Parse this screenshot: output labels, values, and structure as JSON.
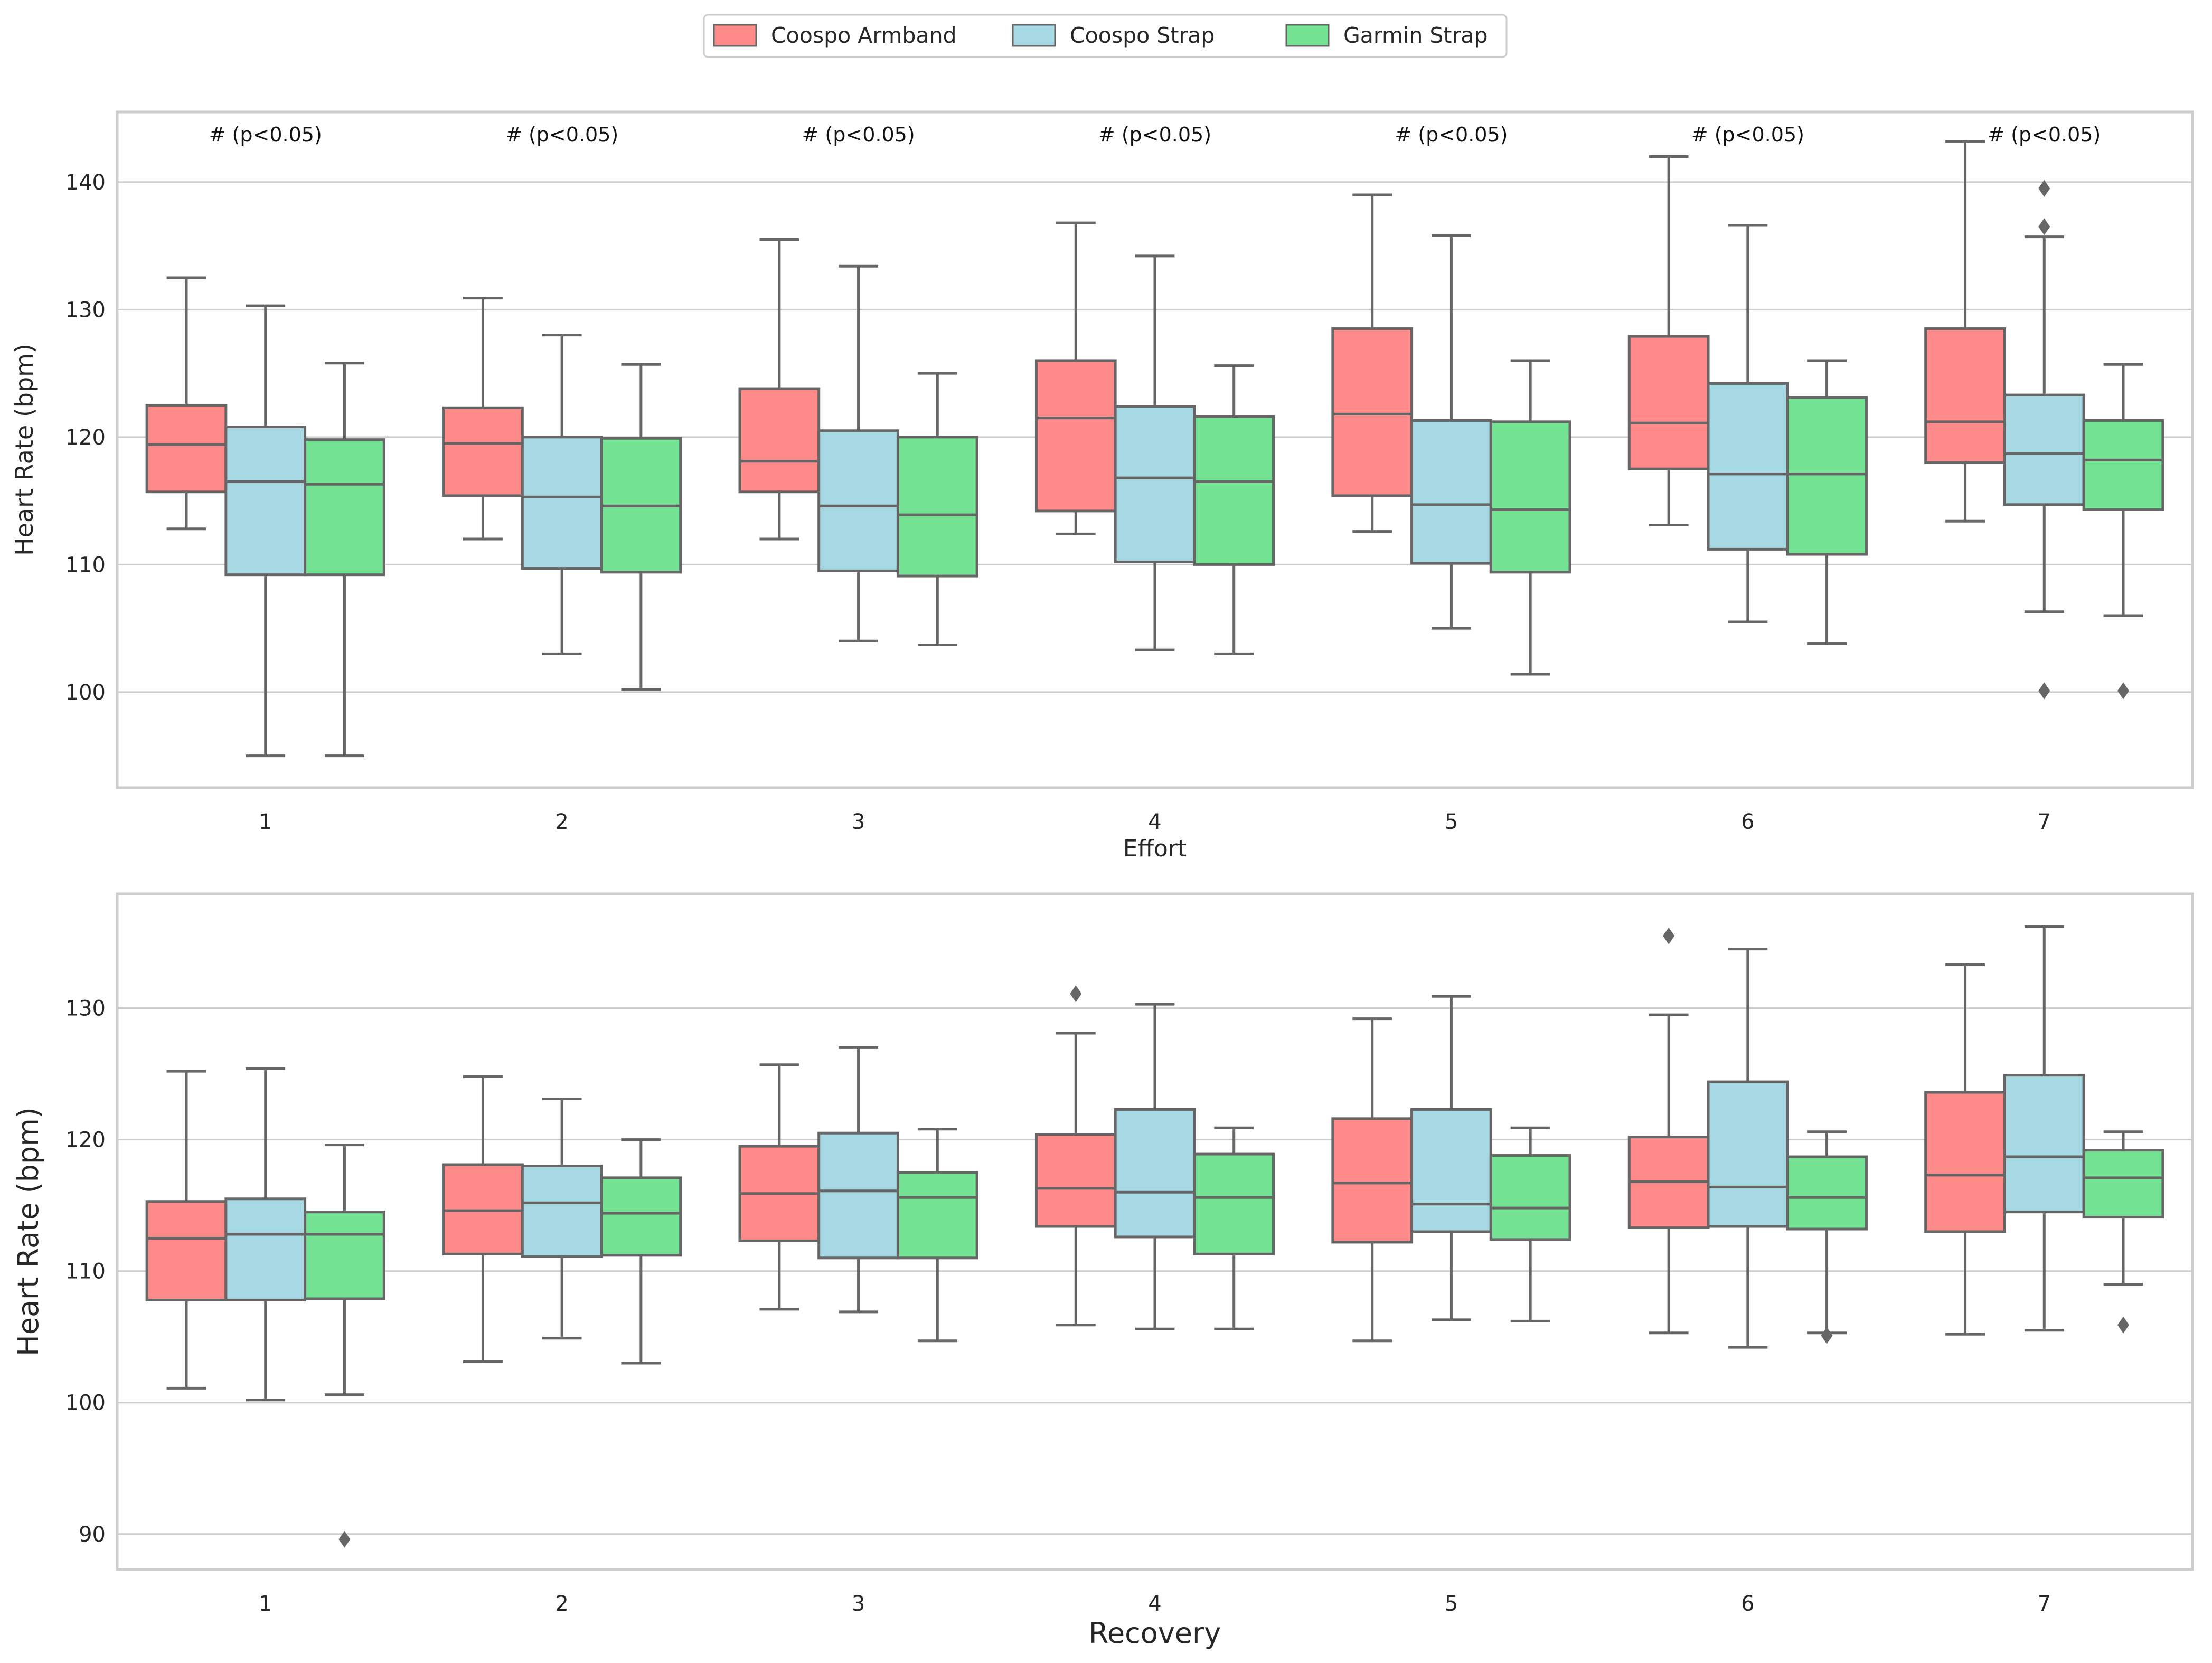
{
  "legend": {
    "entries": [
      {
        "name": "Coospo Armband",
        "color": "#ff8a8a"
      },
      {
        "name": "Coospo Strap",
        "color": "#a6d9e4"
      },
      {
        "name": "Garmin Strap",
        "color": "#74e394"
      }
    ]
  },
  "chart_data": [
    {
      "type": "box",
      "xlabel": "Effort",
      "ylabel": "Heart Rate (bpm)",
      "ylim": [
        92.5,
        145.5
      ],
      "yticks": [
        100,
        110,
        120,
        130,
        140
      ],
      "categories": [
        "1",
        "2",
        "3",
        "4",
        "5",
        "6",
        "7"
      ],
      "annotations": [
        "# (p<0.05)",
        "# (p<0.05)",
        "# (p<0.05)",
        "# (p<0.05)",
        "# (p<0.05)",
        "# (p<0.05)",
        "# (p<0.05)"
      ],
      "series": [
        {
          "name": "Coospo Armband",
          "boxes": [
            {
              "whislo": 112.8,
              "q1": 115.7,
              "med": 119.4,
              "q3": 122.5,
              "whishi": 132.5,
              "fliers": []
            },
            {
              "whislo": 112.0,
              "q1": 115.4,
              "med": 119.5,
              "q3": 122.3,
              "whishi": 130.9,
              "fliers": []
            },
            {
              "whislo": 112.0,
              "q1": 115.7,
              "med": 118.1,
              "q3": 123.8,
              "whishi": 135.5,
              "fliers": []
            },
            {
              "whislo": 112.4,
              "q1": 114.2,
              "med": 121.5,
              "q3": 126.0,
              "whishi": 136.8,
              "fliers": []
            },
            {
              "whislo": 112.6,
              "q1": 115.4,
              "med": 121.8,
              "q3": 128.5,
              "whishi": 139.0,
              "fliers": []
            },
            {
              "whislo": 113.1,
              "q1": 117.5,
              "med": 121.1,
              "q3": 127.9,
              "whishi": 142.0,
              "fliers": []
            },
            {
              "whislo": 113.4,
              "q1": 118.0,
              "med": 121.2,
              "q3": 128.5,
              "whishi": 143.2,
              "fliers": []
            }
          ]
        },
        {
          "name": "Coospo Strap",
          "boxes": [
            {
              "whislo": 95.0,
              "q1": 109.2,
              "med": 116.5,
              "q3": 120.8,
              "whishi": 130.3,
              "fliers": []
            },
            {
              "whislo": 103.0,
              "q1": 109.7,
              "med": 115.3,
              "q3": 120.0,
              "whishi": 128.0,
              "fliers": []
            },
            {
              "whislo": 104.0,
              "q1": 109.5,
              "med": 114.6,
              "q3": 120.5,
              "whishi": 133.4,
              "fliers": []
            },
            {
              "whislo": 103.3,
              "q1": 110.2,
              "med": 116.8,
              "q3": 122.4,
              "whishi": 134.2,
              "fliers": []
            },
            {
              "whislo": 105.0,
              "q1": 110.1,
              "med": 114.7,
              "q3": 121.3,
              "whishi": 135.8,
              "fliers": []
            },
            {
              "whislo": 105.5,
              "q1": 111.2,
              "med": 117.1,
              "q3": 124.2,
              "whishi": 136.6,
              "fliers": []
            },
            {
              "whislo": 106.3,
              "q1": 114.7,
              "med": 118.7,
              "q3": 123.3,
              "whishi": 135.7,
              "fliers": [
                136.5,
                139.5,
                100.1
              ]
            }
          ]
        },
        {
          "name": "Garmin Strap",
          "boxes": [
            {
              "whislo": 95.0,
              "q1": 109.2,
              "med": 116.3,
              "q3": 119.8,
              "whishi": 125.8,
              "fliers": []
            },
            {
              "whislo": 100.2,
              "q1": 109.4,
              "med": 114.6,
              "q3": 119.9,
              "whishi": 125.7,
              "fliers": []
            },
            {
              "whislo": 103.7,
              "q1": 109.1,
              "med": 113.9,
              "q3": 120.0,
              "whishi": 125.0,
              "fliers": []
            },
            {
              "whislo": 103.0,
              "q1": 110.0,
              "med": 116.5,
              "q3": 121.6,
              "whishi": 125.6,
              "fliers": []
            },
            {
              "whislo": 101.4,
              "q1": 109.4,
              "med": 114.3,
              "q3": 121.2,
              "whishi": 126.0,
              "fliers": []
            },
            {
              "whislo": 103.8,
              "q1": 110.8,
              "med": 117.1,
              "q3": 123.1,
              "whishi": 126.0,
              "fliers": []
            },
            {
              "whislo": 106.0,
              "q1": 114.3,
              "med": 118.2,
              "q3": 121.3,
              "whishi": 125.7,
              "fliers": [
                100.1
              ]
            }
          ]
        }
      ]
    },
    {
      "type": "box",
      "xlabel": "Recovery",
      "ylabel": "Heart Rate (bpm)",
      "ylim": [
        87.3,
        138.7
      ],
      "yticks": [
        90,
        100,
        110,
        120,
        130
      ],
      "categories": [
        "1",
        "2",
        "3",
        "4",
        "5",
        "6",
        "7"
      ],
      "series": [
        {
          "name": "Coospo Armband",
          "boxes": [
            {
              "whislo": 101.1,
              "q1": 107.8,
              "med": 112.5,
              "q3": 115.3,
              "whishi": 125.2,
              "fliers": []
            },
            {
              "whislo": 103.1,
              "q1": 111.3,
              "med": 114.6,
              "q3": 118.1,
              "whishi": 124.8,
              "fliers": []
            },
            {
              "whislo": 107.1,
              "q1": 112.3,
              "med": 115.9,
              "q3": 119.5,
              "whishi": 125.7,
              "fliers": []
            },
            {
              "whislo": 105.9,
              "q1": 113.4,
              "med": 116.3,
              "q3": 120.4,
              "whishi": 128.1,
              "fliers": [
                131.1
              ]
            },
            {
              "whislo": 104.7,
              "q1": 112.2,
              "med": 116.7,
              "q3": 121.6,
              "whishi": 129.2,
              "fliers": []
            },
            {
              "whislo": 105.3,
              "q1": 113.3,
              "med": 116.8,
              "q3": 120.2,
              "whishi": 129.5,
              "fliers": [
                135.5
              ]
            },
            {
              "whislo": 105.2,
              "q1": 113.0,
              "med": 117.3,
              "q3": 123.6,
              "whishi": 133.3,
              "fliers": []
            }
          ]
        },
        {
          "name": "Coospo Strap",
          "boxes": [
            {
              "whislo": 100.2,
              "q1": 107.8,
              "med": 112.8,
              "q3": 115.5,
              "whishi": 125.4,
              "fliers": []
            },
            {
              "whislo": 104.9,
              "q1": 111.1,
              "med": 115.2,
              "q3": 118.0,
              "whishi": 123.1,
              "fliers": []
            },
            {
              "whislo": 106.9,
              "q1": 111.0,
              "med": 116.1,
              "q3": 120.5,
              "whishi": 127.0,
              "fliers": []
            },
            {
              "whislo": 105.6,
              "q1": 112.6,
              "med": 116.0,
              "q3": 122.3,
              "whishi": 130.3,
              "fliers": []
            },
            {
              "whislo": 106.3,
              "q1": 113.0,
              "med": 115.1,
              "q3": 122.3,
              "whishi": 130.9,
              "fliers": []
            },
            {
              "whislo": 104.2,
              "q1": 113.4,
              "med": 116.4,
              "q3": 124.4,
              "whishi": 134.5,
              "fliers": []
            },
            {
              "whislo": 105.5,
              "q1": 114.5,
              "med": 118.7,
              "q3": 124.9,
              "whishi": 136.2,
              "fliers": []
            }
          ]
        },
        {
          "name": "Garmin Strap",
          "boxes": [
            {
              "whislo": 100.6,
              "q1": 107.9,
              "med": 112.8,
              "q3": 114.5,
              "whishi": 119.6,
              "fliers": [
                89.6
              ]
            },
            {
              "whislo": 103.0,
              "q1": 111.2,
              "med": 114.4,
              "q3": 117.1,
              "whishi": 120.0,
              "fliers": []
            },
            {
              "whislo": 104.7,
              "q1": 111.0,
              "med": 115.6,
              "q3": 117.5,
              "whishi": 120.8,
              "fliers": []
            },
            {
              "whislo": 105.6,
              "q1": 111.3,
              "med": 115.6,
              "q3": 118.9,
              "whishi": 120.9,
              "fliers": []
            },
            {
              "whislo": 106.2,
              "q1": 112.4,
              "med": 114.8,
              "q3": 118.8,
              "whishi": 120.9,
              "fliers": []
            },
            {
              "whislo": 105.3,
              "q1": 113.2,
              "med": 115.6,
              "q3": 118.7,
              "whishi": 120.6,
              "fliers": [
                105.1
              ]
            },
            {
              "whislo": 109.0,
              "q1": 114.1,
              "med": 117.1,
              "q3": 119.2,
              "whishi": 120.6,
              "fliers": [
                105.9
              ]
            }
          ]
        }
      ]
    }
  ]
}
